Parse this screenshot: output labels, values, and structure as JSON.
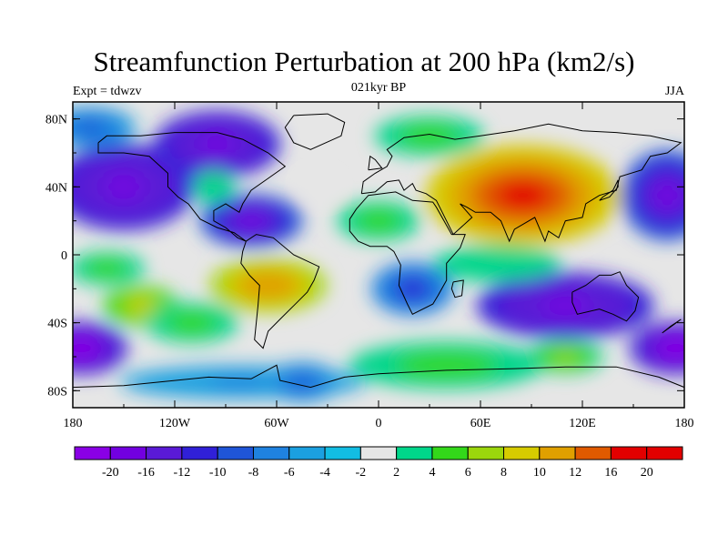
{
  "title": "Streamfunction Perturbation at 200 hPa (km2/s)",
  "left_string": "Expt = tdwzv",
  "center_string": "021kyr BP",
  "right_string": "JJA",
  "map": {
    "projection": "cylindrical equidistant",
    "lon_range": [
      -180,
      180
    ],
    "lat_range": [
      -90,
      90
    ],
    "lat_labels": [
      {
        "lat": 80,
        "text": "80N"
      },
      {
        "lat": 40,
        "text": "40N"
      },
      {
        "lat": 0,
        "text": "0"
      },
      {
        "lat": -40,
        "text": "40S"
      },
      {
        "lat": -80,
        "text": "80S"
      }
    ],
    "lon_labels": [
      {
        "lon": -180,
        "text": "180"
      },
      {
        "lon": -120,
        "text": "120W"
      },
      {
        "lon": -60,
        "text": "60W"
      },
      {
        "lon": 0,
        "text": "0"
      },
      {
        "lon": 60,
        "text": "60E"
      },
      {
        "lon": 120,
        "text": "120E"
      },
      {
        "lon": 180,
        "text": "180"
      }
    ]
  },
  "colorbar": {
    "labels": [
      "-20",
      "-16",
      "-12",
      "-10",
      "-8",
      "-6",
      "-4",
      "-2",
      "2",
      "4",
      "6",
      "8",
      "10",
      "12",
      "16",
      "20"
    ],
    "colors": [
      "#8a00e6",
      "#7200e0",
      "#5a1ad6",
      "#3020d8",
      "#1f55d8",
      "#1f82e0",
      "#1ba0e0",
      "#12bde3",
      "#e6e6e6",
      "#00d68a",
      "#33d81a",
      "#9bd60c",
      "#d6cb00",
      "#e0a000",
      "#e05a00",
      "#e20000"
    ]
  },
  "features": [
    {
      "name": "north-pacific-low",
      "lon": -150,
      "lat": 40,
      "rx": 40,
      "ry": 24,
      "value": -16
    },
    {
      "name": "north-america-low",
      "lon": -95,
      "lat": 65,
      "rx": 35,
      "ry": 18,
      "value": -16
    },
    {
      "name": "caribbean-low",
      "lon": -75,
      "lat": 20,
      "rx": 28,
      "ry": 14,
      "value": -14
    },
    {
      "name": "central-us-high",
      "lon": -97,
      "lat": 40,
      "rx": 10,
      "ry": 8,
      "value": 4
    },
    {
      "name": "pacific-arctic-low",
      "lon": -170,
      "lat": 75,
      "rx": 25,
      "ry": 10,
      "value": -6
    },
    {
      "name": "atlantic-high",
      "lon": -35,
      "lat": 40,
      "rx": 6,
      "ry": 4,
      "value": 2
    },
    {
      "name": "asia-high",
      "lon": 85,
      "lat": 35,
      "rx": 55,
      "ry": 28,
      "value": 20
    },
    {
      "name": "arctic-europe-high",
      "lon": 30,
      "lat": 70,
      "rx": 30,
      "ry": 10,
      "value": 6
    },
    {
      "name": "africa-high",
      "lon": 0,
      "lat": 20,
      "rx": 22,
      "ry": 10,
      "value": 6
    },
    {
      "name": "west-pacific-low",
      "lon": 170,
      "lat": 35,
      "rx": 25,
      "ry": 25,
      "value": -14
    },
    {
      "name": "south-america-high",
      "lon": -65,
      "lat": -18,
      "rx": 32,
      "ry": 14,
      "value": 14
    },
    {
      "name": "south-pacific-high",
      "lon": -140,
      "lat": -30,
      "rx": 20,
      "ry": 10,
      "value": 10
    },
    {
      "name": "east-pacific-eq-high",
      "lon": -160,
      "lat": -8,
      "rx": 20,
      "ry": 8,
      "value": 6
    },
    {
      "name": "south-atlantic-low",
      "lon": 20,
      "lat": -20,
      "rx": 22,
      "ry": 14,
      "value": -8
    },
    {
      "name": "indian-ocean-low",
      "lon": 110,
      "lat": -30,
      "rx": 50,
      "ry": 18,
      "value": -16
    },
    {
      "name": "southern-ocean-high",
      "lon": 40,
      "lat": -65,
      "rx": 55,
      "ry": 12,
      "value": 6
    },
    {
      "name": "south-indian-high",
      "lon": 110,
      "lat": -60,
      "rx": 20,
      "ry": 8,
      "value": 8
    },
    {
      "name": "se-pacific-low",
      "lon": -175,
      "lat": -55,
      "rx": 25,
      "ry": 14,
      "value": -18
    },
    {
      "name": "se-pacific-low-2",
      "lon": 175,
      "lat": -55,
      "rx": 25,
      "ry": 14,
      "value": -18
    },
    {
      "name": "antarctic-low",
      "lon": -80,
      "lat": -75,
      "rx": 70,
      "ry": 8,
      "value": -4
    },
    {
      "name": "south-atlantic-mid-low",
      "lon": -45,
      "lat": -75,
      "rx": 20,
      "ry": 10,
      "value": -6
    },
    {
      "name": "tropical-indian-high",
      "lon": 70,
      "lat": -5,
      "rx": 35,
      "ry": 9,
      "value": 4
    },
    {
      "name": "subtropical-pacific-high",
      "lon": -110,
      "lat": -40,
      "rx": 25,
      "ry": 10,
      "value": 6
    }
  ]
}
